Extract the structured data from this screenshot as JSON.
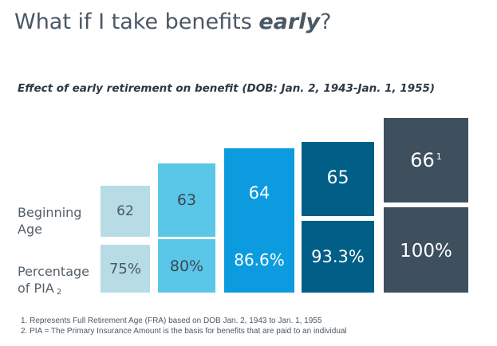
{
  "title": {
    "prefix": "What if I take benefits ",
    "emphasis": "early",
    "suffix": "?"
  },
  "subtitle": "Effect of early retirement on benefit (DOB: Jan. 2, 1943-Jan. 1, 1955)",
  "row_labels": {
    "beginning_age": [
      "Beginning",
      "Age"
    ],
    "percentage": [
      "Percentage",
      "of PIA"
    ],
    "percentage_sub": "2"
  },
  "columns": [
    {
      "age": "62",
      "age_sup": "",
      "percent": "75%",
      "color": "#b7dce6",
      "text_color": "#4a5865"
    },
    {
      "age": "63",
      "age_sup": "",
      "percent": "80%",
      "color": "#5bc7e8",
      "text_color": "#3a4753"
    },
    {
      "age": "64",
      "age_sup": "",
      "percent": "86.6%",
      "color": "#0d9bdf",
      "text_color": "#ffffff"
    },
    {
      "age": "65",
      "age_sup": "",
      "percent": "93.3%",
      "color": "#005e87",
      "text_color": "#ffffff"
    },
    {
      "age": "66",
      "age_sup": "1",
      "percent": "100%",
      "color": "#3e4f5e",
      "text_color": "#ffffff"
    }
  ],
  "footnotes": [
    "1.  Represents Full Retirement Age (FRA) based on DOB Jan. 2, 1943 to Jan. 1, 1955",
    "2.  PIA = The Primary Insurance Amount is the basis for benefits that are paid to an individual"
  ]
}
